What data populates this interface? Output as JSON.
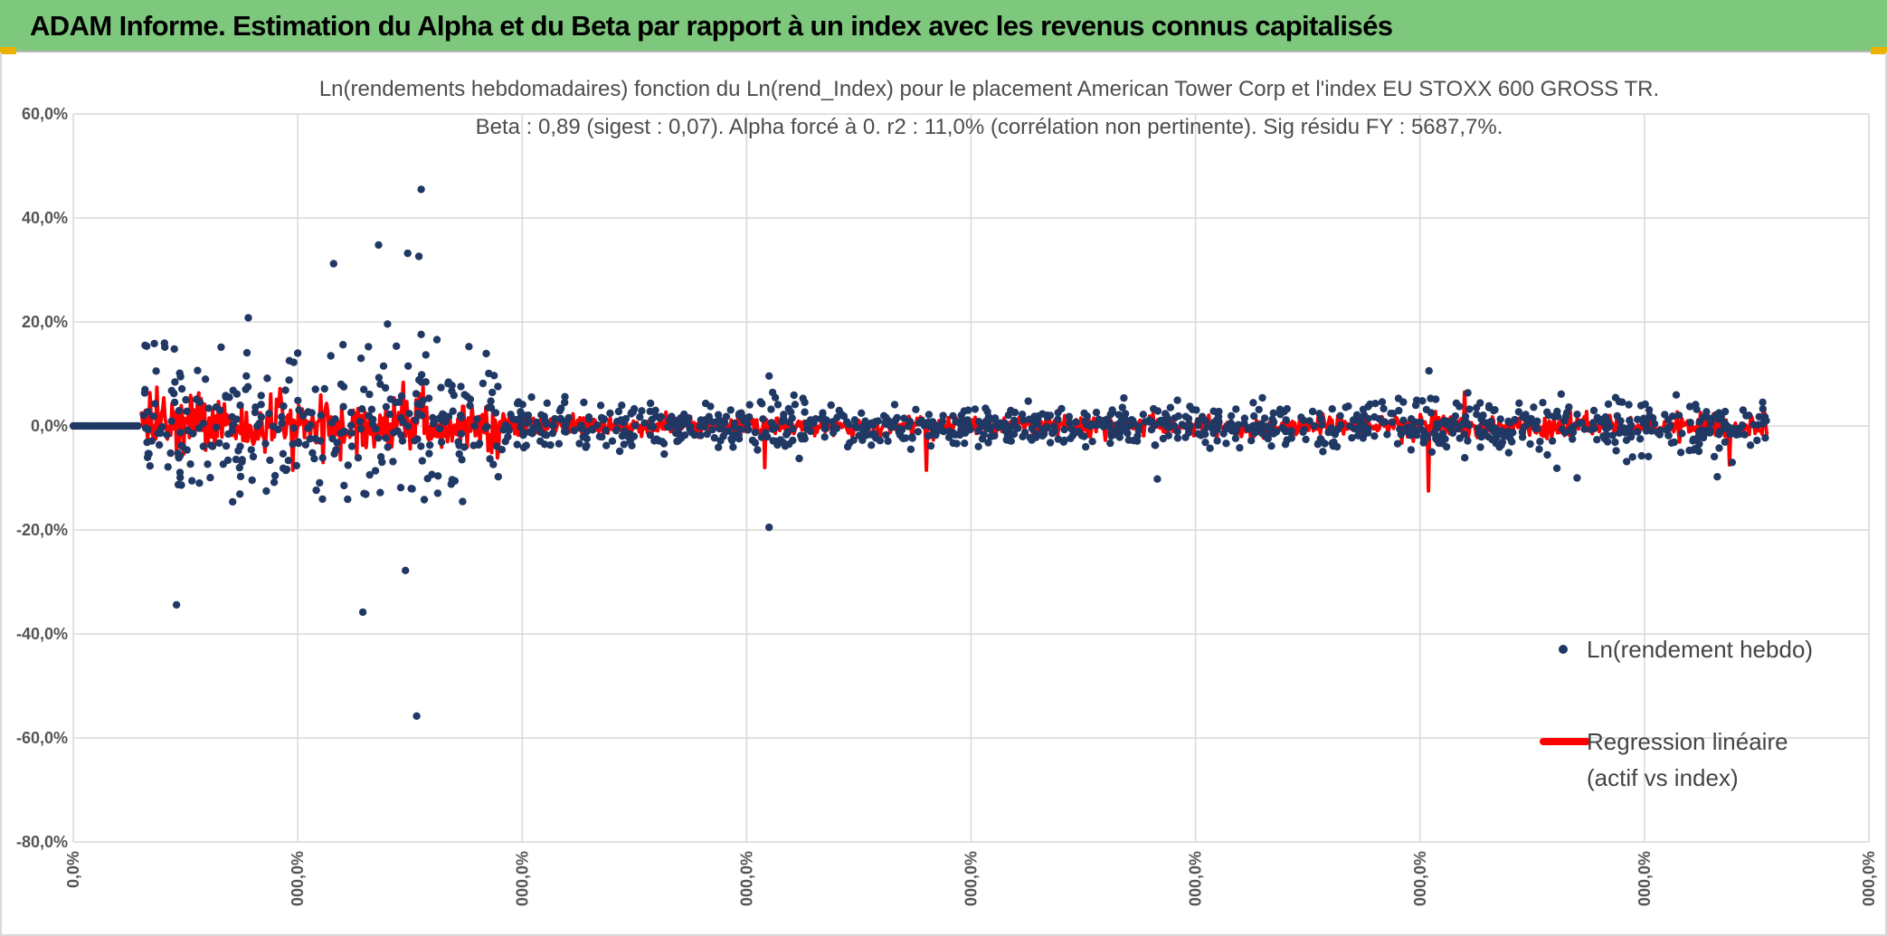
{
  "header": {
    "title": "ADAM Informe. Estimation du Alpha et du Beta par rapport à un index avec les revenus connus capitalisés"
  },
  "chart_data": {
    "type": "scatter",
    "title_line1": "Ln(rendements hebdomadaires) fonction du Ln(rend_Index) pour le placement American Tower Corp et l'index EU STOXX 600 GROSS TR.",
    "title_line2": "Beta : 0,89 (sigest : 0,07). Alpha forcé à 0. r2 : 11,0% (corrélation non pertinente). Sig résidu FY : 5687,7%.",
    "ylim": [
      -80,
      60
    ],
    "yticks": [
      60,
      40,
      20,
      0,
      -20,
      -40,
      -60,
      -80
    ],
    "ytick_labels": [
      "60,0%",
      "40,0%",
      "20,0%",
      "0,0%",
      "-20,0%",
      "-40,0%",
      "-60,0%",
      "-80,0%"
    ],
    "xticks": [
      0,
      1,
      2,
      3,
      4,
      5,
      6,
      7,
      8
    ],
    "xtick_labels": [
      "0,0%",
      "000,0%",
      "000,0%",
      "000,0%",
      "000,0%",
      "000,0%",
      "000,0%",
      "000,0%",
      "000,0%"
    ],
    "gridlines": true,
    "legend": {
      "position": "right",
      "entries": [
        {
          "name": "Ln(rendement hebdo)",
          "marker": "dot",
          "color": "#203864"
        },
        {
          "name": "Regression linéaire (actif vs index)",
          "line1": "Regression linéaire",
          "line2": "(actif vs index)",
          "marker": "line",
          "color": "#ff0000"
        }
      ]
    },
    "series": [
      {
        "name": "Ln(rendement hebdo)",
        "color": "#203864",
        "x_range": [
          0,
          7.55
        ],
        "zero_segment_end": 0.3,
        "outliers": [
          {
            "x": 0.32,
            "y": 15.5
          },
          {
            "x": 0.45,
            "y": 14.8
          },
          {
            "x": 0.46,
            "y": -34.4
          },
          {
            "x": 0.71,
            "y": -14.6
          },
          {
            "x": 0.78,
            "y": 20.8
          },
          {
            "x": 1.0,
            "y": 14.0
          },
          {
            "x": 1.16,
            "y": 31.2
          },
          {
            "x": 1.29,
            "y": -35.8
          },
          {
            "x": 1.36,
            "y": 34.8
          },
          {
            "x": 1.4,
            "y": 19.6
          },
          {
            "x": 1.48,
            "y": -27.8
          },
          {
            "x": 1.49,
            "y": 33.2
          },
          {
            "x": 1.53,
            "y": -55.8
          },
          {
            "x": 1.54,
            "y": 32.6
          },
          {
            "x": 1.55,
            "y": 45.5
          },
          {
            "x": 1.55,
            "y": 17.6
          },
          {
            "x": 1.62,
            "y": 16.6
          },
          {
            "x": 3.1,
            "y": -19.5
          },
          {
            "x": 3.1,
            "y": 9.6
          },
          {
            "x": 4.83,
            "y": -10.2
          },
          {
            "x": 6.04,
            "y": 10.6
          },
          {
            "x": 6.7,
            "y": -10.0
          }
        ]
      },
      {
        "name": "Regression linéaire (actif vs index)",
        "color": "#ff0000",
        "x_range": [
          0.3,
          7.55
        ],
        "notable_extremes": [
          {
            "x": 0.46,
            "y": -6.0
          },
          {
            "x": 1.56,
            "y": 7.5
          },
          {
            "x": 3.08,
            "y": -8.0
          },
          {
            "x": 3.8,
            "y": -8.5
          },
          {
            "x": 6.04,
            "y": -12.5
          },
          {
            "x": 6.2,
            "y": 6.5
          },
          {
            "x": 7.38,
            "y": -7.5
          }
        ]
      }
    ]
  }
}
